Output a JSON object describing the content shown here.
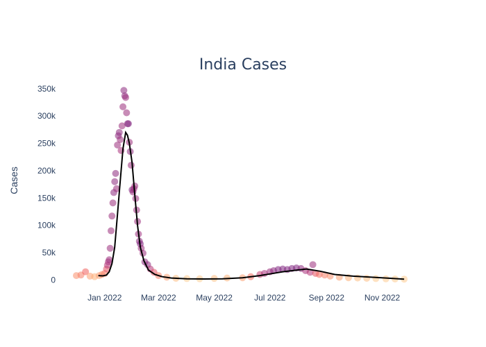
{
  "chart_data": {
    "type": "scatter",
    "title": "India Cases",
    "xlabel": "",
    "ylabel": "Cases",
    "xlim": [
      "2021-12-01",
      "2022-12-01"
    ],
    "ylim": [
      -30000,
      360000
    ],
    "y_ticks": [
      0,
      50000,
      100000,
      150000,
      200000,
      250000,
      300000,
      350000
    ],
    "y_tick_labels": [
      "0",
      "50k",
      "100k",
      "150k",
      "200k",
      "250k",
      "300k",
      "350k"
    ],
    "x_ticks": [
      "2022-01-01",
      "2022-03-01",
      "2022-05-01",
      "2022-07-01",
      "2022-09-01",
      "2022-11-01"
    ],
    "x_tick_labels": [
      "Jan 2022",
      "Mar 2022",
      "May 2022",
      "Jul 2022",
      "Sep 2022",
      "Nov 2022"
    ],
    "grid": false,
    "legend": "none",
    "colors": {
      "title": "#2a3f5f",
      "trend_line": "#000000",
      "markers_high": "#7b2382",
      "markers_mid": "#e8566b",
      "markers_low": "#fde0a4"
    },
    "series": [
      {
        "type": "scatter",
        "x": [
          "2021-12-01",
          "2021-12-06",
          "2021-12-11",
          "2021-12-16",
          "2021-12-21",
          "2021-12-26",
          "2021-12-29",
          "2022-01-01",
          "2022-01-03",
          "2022-01-04",
          "2022-01-05",
          "2022-01-06",
          "2022-01-07",
          "2022-01-08",
          "2022-01-09",
          "2022-01-10",
          "2022-01-11",
          "2022-01-12",
          "2022-01-13",
          "2022-01-14",
          "2022-01-15",
          "2022-01-16",
          "2022-01-17",
          "2022-01-18",
          "2022-01-19",
          "2022-01-20",
          "2022-01-21",
          "2022-01-22",
          "2022-01-23",
          "2022-01-24",
          "2022-01-25",
          "2022-01-26",
          "2022-01-27",
          "2022-01-28",
          "2022-01-29",
          "2022-01-30",
          "2022-01-31",
          "2022-02-01",
          "2022-02-02",
          "2022-02-03",
          "2022-02-04",
          "2022-02-05",
          "2022-02-06",
          "2022-02-07",
          "2022-02-08",
          "2022-02-09",
          "2022-02-10",
          "2022-02-12",
          "2022-02-14",
          "2022-02-17",
          "2022-02-20",
          "2022-02-24",
          "2022-03-01",
          "2022-03-10",
          "2022-03-20",
          "2022-04-01",
          "2022-04-15",
          "2022-05-01",
          "2022-05-15",
          "2022-06-01",
          "2022-06-10",
          "2022-06-20",
          "2022-06-25",
          "2022-07-01",
          "2022-07-05",
          "2022-07-10",
          "2022-07-15",
          "2022-07-20",
          "2022-07-25",
          "2022-07-30",
          "2022-08-04",
          "2022-08-09",
          "2022-08-14",
          "2022-08-17",
          "2022-08-20",
          "2022-08-24",
          "2022-08-30",
          "2022-09-05",
          "2022-09-15",
          "2022-09-25",
          "2022-10-05",
          "2022-10-15",
          "2022-10-25",
          "2022-11-05",
          "2022-11-15",
          "2022-11-25"
        ],
        "y": [
          8000,
          9000,
          15000,
          7000,
          6000,
          8000,
          10000,
          12000,
          20000,
          27000,
          33000,
          37000,
          58000,
          90000,
          117000,
          141000,
          160000,
          180000,
          195000,
          167000,
          247000,
          264000,
          270000,
          257000,
          237000,
          282000,
          317000,
          347000,
          337000,
          334000,
          306000,
          286000,
          286000,
          252000,
          235000,
          210000,
          165000,
          161000,
          167000,
          172000,
          149000,
          128000,
          107000,
          84000,
          71000,
          66000,
          58000,
          49000,
          33000,
          28000,
          20000,
          14000,
          8000,
          5000,
          3000,
          2500,
          2200,
          2800,
          3500,
          4000,
          6000,
          10000,
          12000,
          15000,
          17000,
          19000,
          20000,
          19000,
          21000,
          22000,
          21000,
          17000,
          14000,
          28000,
          12000,
          10000,
          9000,
          7000,
          5000,
          4000,
          3500,
          3000,
          2500,
          2000,
          1800,
          1500
        ],
        "intensity": [
          0.4,
          0.45,
          0.55,
          0.35,
          0.3,
          0.35,
          0.4,
          0.45,
          0.6,
          0.75,
          0.8,
          0.85,
          0.85,
          0.85,
          0.85,
          0.85,
          0.9,
          0.9,
          0.9,
          0.85,
          0.85,
          0.9,
          0.9,
          0.85,
          0.8,
          0.85,
          0.85,
          0.9,
          0.9,
          0.85,
          0.85,
          0.9,
          0.95,
          0.85,
          0.9,
          0.85,
          0.95,
          0.85,
          0.85,
          0.85,
          0.85,
          0.85,
          0.85,
          0.85,
          0.9,
          0.95,
          0.85,
          0.85,
          0.9,
          0.9,
          0.75,
          0.6,
          0.45,
          0.35,
          0.25,
          0.2,
          0.2,
          0.25,
          0.3,
          0.35,
          0.5,
          0.7,
          0.8,
          0.85,
          0.9,
          0.95,
          0.95,
          0.95,
          0.95,
          0.95,
          0.9,
          0.8,
          0.75,
          0.85,
          0.6,
          0.5,
          0.45,
          0.4,
          0.35,
          0.3,
          0.25,
          0.25,
          0.2,
          0.2,
          0.2,
          0.2
        ]
      },
      {
        "type": "line",
        "x": [
          "2021-12-25",
          "2021-12-30",
          "2022-01-03",
          "2022-01-06",
          "2022-01-09",
          "2022-01-12",
          "2022-01-15",
          "2022-01-18",
          "2022-01-21",
          "2022-01-24",
          "2022-01-26",
          "2022-01-28",
          "2022-01-31",
          "2022-02-03",
          "2022-02-06",
          "2022-02-09",
          "2022-02-13",
          "2022-02-18",
          "2022-02-25",
          "2022-03-05",
          "2022-03-15",
          "2022-04-01",
          "2022-04-20",
          "2022-05-10",
          "2022-06-01",
          "2022-06-20",
          "2022-07-01",
          "2022-07-15",
          "2022-07-30",
          "2022-08-10",
          "2022-08-25",
          "2022-09-10",
          "2022-09-30",
          "2022-10-20",
          "2022-11-10",
          "2022-11-25"
        ],
        "y": [
          8000,
          7500,
          9000,
          15000,
          30000,
          60000,
          120000,
          180000,
          240000,
          270000,
          265000,
          250000,
          215000,
          155000,
          100000,
          60000,
          35000,
          18000,
          10000,
          6000,
          3500,
          2200,
          1800,
          2200,
          4000,
          8000,
          11000,
          15000,
          18000,
          20000,
          16000,
          10000,
          7000,
          5000,
          3000,
          1500
        ]
      }
    ]
  }
}
